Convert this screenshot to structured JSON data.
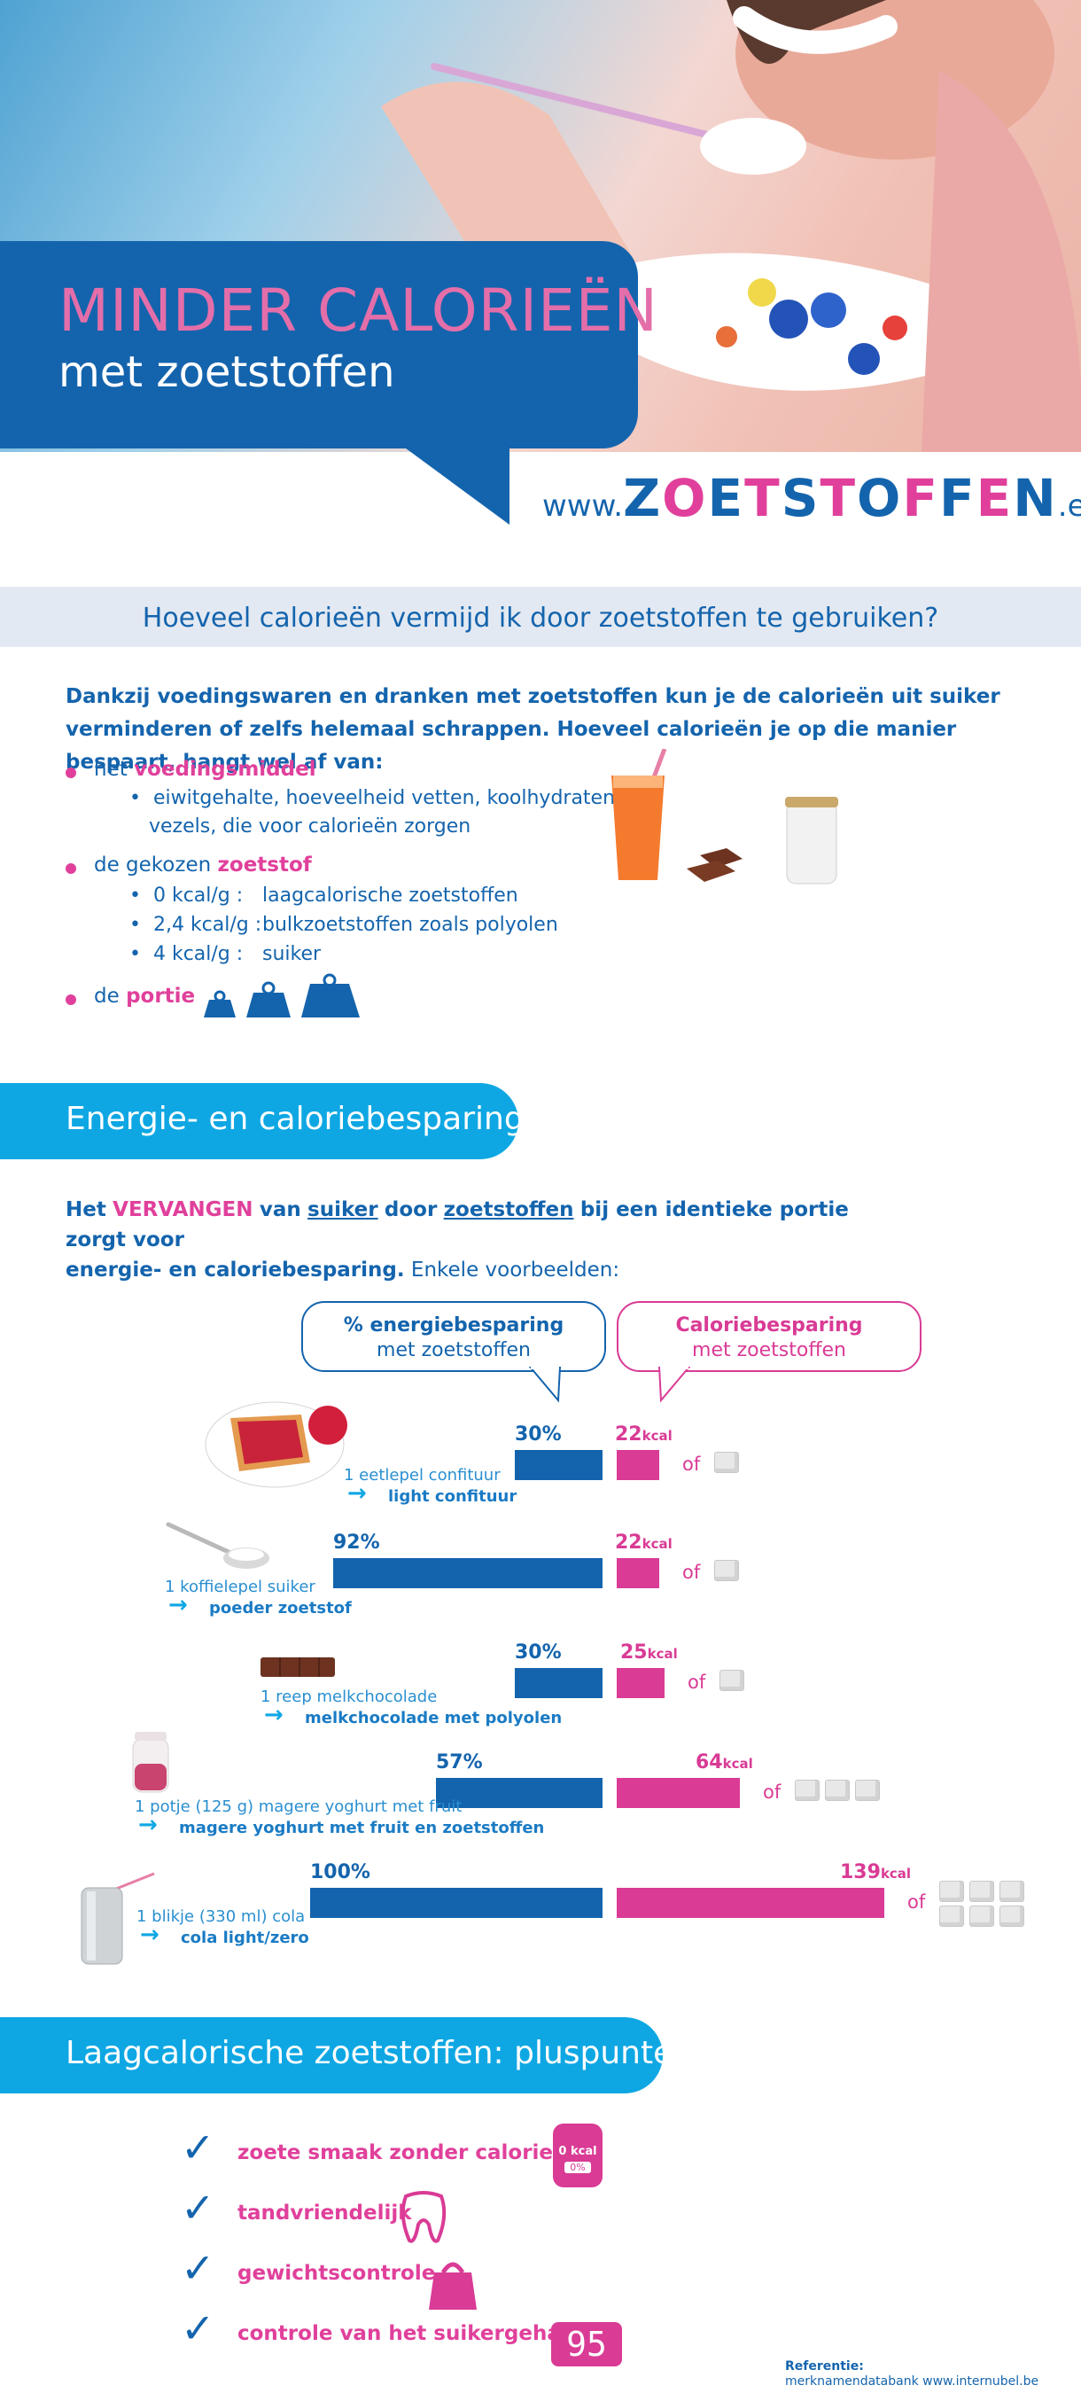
{
  "header": {
    "title_line1": "MINDER CALORIEËN",
    "title_line2": "met zoetstoffen",
    "site_prefix": "www.",
    "site_brand": "ZOETSTOFFEN",
    "site_suffix": ".eu"
  },
  "question": "Hoeveel calorieën vermijd ik door zoetstoffen te gebruiken?",
  "intro": "Dankzij voedingswaren en dranken met zoetstoffen kun je de calorieën uit suiker verminderen of zelfs helemaal schrappen. Hoeveel calorieën je op die manier bespaart, hangt wel af van:",
  "factors": {
    "f1_prefix": "het",
    "f1_key": "voedingsmiddel",
    "f1_sub": "eiwitgehalte, hoeveelheid vetten, koolhydraten,",
    "f1_sub2": "vezels, die voor calorieën zorgen",
    "f2_prefix": "de gekozen",
    "f2_key": "zoetstof",
    "f2_rows": [
      {
        "value": "0 kcal/g",
        "desc": "laagcalorische zoetstoffen"
      },
      {
        "value": "2,4 kcal/g",
        "desc": "bulkzoetstoffen zoals polyolen"
      },
      {
        "value": "4 kcal/g",
        "desc": "suiker"
      }
    ],
    "f3_prefix": "de",
    "f3_key": "portie"
  },
  "section2": {
    "title": "Energie- en caloriebesparing",
    "text_a": "Het",
    "text_b": "VERVANGEN",
    "text_c": "van",
    "text_d": "suiker",
    "text_e": "door",
    "text_f": "zoetstoffen",
    "text_g": "bij een identieke portie zorgt voor",
    "text_h": "energie- en caloriebesparing.",
    "text_i": "Enkele voorbeelden:",
    "bubble_energy_bold": "% energiebesparing",
    "bubble_energy_rest": "met zoetstoffen",
    "bubble_cal_bold": "Caloriebesparing",
    "bubble_cal_rest": "met zoetstoffen",
    "of_label": "of",
    "kcal_unit": "kcal"
  },
  "chart_data": {
    "type": "bar",
    "categories": [
      {
        "from": "1 eetlepel confituur",
        "to": "light confituur"
      },
      {
        "from": "1 koffielepel suiker",
        "to": "poeder zoetstof"
      },
      {
        "from": "1 reep melkchocolade",
        "to": "melkchocolade met polyolen"
      },
      {
        "from": "1 potje (125 g) magere yoghurt met fruit",
        "to": "magere yoghurt met fruit en zoetstoffen"
      },
      {
        "from": "1 blikje (330 ml) cola",
        "to": "cola light/zero"
      }
    ],
    "energy_pct_labels": [
      "30%",
      "92%",
      "30%",
      "57%",
      "100%"
    ],
    "energy_pct": [
      30,
      92,
      30,
      57,
      100
    ],
    "kcal_saved": [
      22,
      22,
      25,
      64,
      139
    ],
    "sugar_cubes": [
      1,
      1,
      1,
      3,
      6
    ]
  },
  "section3": {
    "title": "Laagcalorische zoetstoffen: pluspunten",
    "points": [
      "zoete smaak zonder calorieën",
      "tandvriendelijk",
      "gewichtscontrole",
      "controle van het suikergehalte"
    ],
    "badge_top": "0 kcal",
    "badge_bottom": "0%",
    "meter_value": "95"
  },
  "reference": {
    "label": "Referentie:",
    "text": "merknamendatabank www.internubel.be"
  },
  "colors": {
    "blue": "#1464ad",
    "pink": "#e0409b",
    "cyan": "#0ea7e3"
  }
}
